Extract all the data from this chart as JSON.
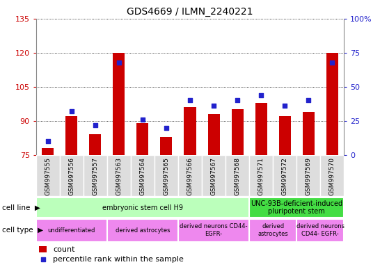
{
  "title": "GDS4669 / ILMN_2240221",
  "samples": [
    "GSM997555",
    "GSM997556",
    "GSM997557",
    "GSM997563",
    "GSM997564",
    "GSM997565",
    "GSM997566",
    "GSM997567",
    "GSM997568",
    "GSM997571",
    "GSM997572",
    "GSM997569",
    "GSM997570"
  ],
  "counts": [
    78,
    92,
    84,
    120,
    89,
    83,
    96,
    93,
    95,
    98,
    92,
    94,
    120
  ],
  "percentiles": [
    10,
    32,
    22,
    68,
    26,
    20,
    40,
    36,
    40,
    44,
    36,
    40,
    68
  ],
  "ylim_left": [
    75,
    135
  ],
  "ylim_right": [
    0,
    100
  ],
  "yticks_left": [
    75,
    90,
    105,
    120,
    135
  ],
  "yticks_right": [
    0,
    25,
    50,
    75,
    100
  ],
  "ytick_labels_right": [
    "0",
    "25",
    "50",
    "75",
    "100%"
  ],
  "bar_color": "#cc0000",
  "dot_color": "#2222cc",
  "cell_line_groups": [
    {
      "label": "embryonic stem cell H9",
      "start": 0,
      "end": 9,
      "color": "#bbffbb"
    },
    {
      "label": "UNC-93B-deficient-induced\npluripotent stem",
      "start": 9,
      "end": 13,
      "color": "#44dd44"
    }
  ],
  "cell_type_groups": [
    {
      "label": "undifferentiated",
      "start": 0,
      "end": 3,
      "color": "#ee88ee"
    },
    {
      "label": "derived astrocytes",
      "start": 3,
      "end": 6,
      "color": "#ee88ee"
    },
    {
      "label": "derived neurons CD44-\nEGFR-",
      "start": 6,
      "end": 9,
      "color": "#ee88ee"
    },
    {
      "label": "derived\nastrocytes",
      "start": 9,
      "end": 11,
      "color": "#ee88ee"
    },
    {
      "label": "derived neurons\nCD44- EGFR-",
      "start": 11,
      "end": 13,
      "color": "#ee88ee"
    }
  ],
  "tick_color_left": "#cc0000",
  "tick_color_right": "#2222cc",
  "label_left": "cell line",
  "label_right": "cell type",
  "bar_width": 0.5
}
